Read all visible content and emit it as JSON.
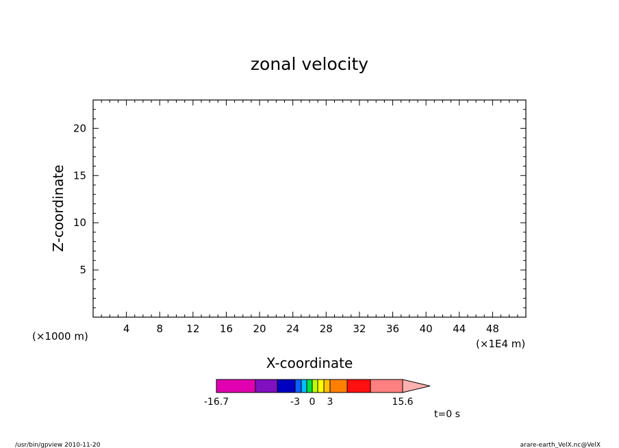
{
  "chart_data": {
    "type": "heatmap",
    "title": "zonal velocity",
    "xlabel": "X-coordinate",
    "ylabel": "Z-coordinate",
    "x_units": "(×1E4 m)",
    "y_units": "(×1000 m)",
    "xlim": [
      0,
      52
    ],
    "ylim": [
      0,
      23
    ],
    "x_ticks": [
      4,
      8,
      12,
      16,
      20,
      24,
      28,
      32,
      36,
      40,
      44,
      48
    ],
    "y_ticks": [
      5,
      10,
      15,
      20
    ],
    "x_minor_step": 1,
    "y_minor_step": 1,
    "plot_empty": true,
    "colorbar": {
      "labeled_values": [
        "-16.7",
        "-3",
        "0",
        "3",
        "15.6"
      ],
      "colors": [
        "#e000b0",
        "#8010c0",
        "#0000c0",
        "#1060ff",
        "#00c0ff",
        "#00e040",
        "#c0ff00",
        "#ffff00",
        "#ffc000",
        "#ff8000",
        "#ff1010",
        "#ff8080",
        "#ffb0b0"
      ],
      "extend": "max"
    },
    "time_label": "t=0 s"
  },
  "footer": {
    "left": "/usr/bin/gpview   2010-11-20",
    "right": "arare-earth_VelX.nc@VelX"
  }
}
